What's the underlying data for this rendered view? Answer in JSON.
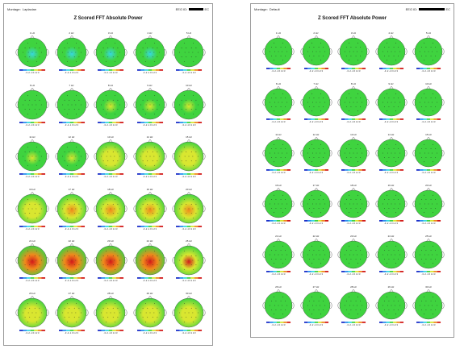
{
  "reports": [
    {
      "id": "left",
      "montage_label": "Montage",
      "montage_value": "Laplacian",
      "eeg_id_label": "EEG ID",
      "eeg_id_tail": "EC",
      "title": "Z Scored FFT Absolute Power",
      "hz_labels": [
        "1 Hz",
        "2 Hz",
        "3 Hz",
        "4 Hz",
        "5 Hz",
        "6 Hz",
        "7 Hz",
        "8 Hz",
        "9 Hz",
        "10 Hz",
        "11 Hz",
        "12 Hz",
        "13 Hz",
        "14 Hz",
        "15 Hz",
        "16 Hz",
        "17 Hz",
        "18 Hz",
        "19 Hz",
        "20 Hz",
        "21 Hz",
        "22 Hz",
        "23 Hz",
        "24 Hz",
        "25 Hz",
        "26 Hz",
        "27 Hz",
        "28 Hz",
        "29 Hz",
        "30 Hz"
      ],
      "scale_label": "-3 -2 -1 0 1 2 3",
      "map_intensity": [
        -0.6,
        -0.9,
        -0.8,
        -0.6,
        -0.5,
        -0.3,
        0.1,
        0.5,
        0.7,
        0.5,
        0.6,
        0.8,
        1.0,
        1.2,
        1.0,
        1.4,
        1.6,
        1.8,
        2.0,
        2.2,
        2.8,
        3.0,
        3.0,
        2.9,
        2.6,
        1.4,
        1.2,
        1.0,
        1.1,
        1.0
      ]
    },
    {
      "id": "right",
      "montage_label": "Montage",
      "montage_value": "Default",
      "eeg_id_label": "EEG ID",
      "eeg_id_tail": "EC",
      "title": "Z Scored FFT Absolute Power",
      "hz_labels": [
        "1 Hz",
        "2 Hz",
        "3 Hz",
        "4 Hz",
        "5 Hz",
        "6 Hz",
        "7 Hz",
        "8 Hz",
        "9 Hz",
        "10 Hz",
        "11 Hz",
        "12 Hz",
        "13 Hz",
        "14 Hz",
        "15 Hz",
        "16 Hz",
        "17 Hz",
        "18 Hz",
        "19 Hz",
        "20 Hz",
        "21 Hz",
        "22 Hz",
        "23 Hz",
        "24 Hz",
        "25 Hz",
        "26 Hz",
        "27 Hz",
        "28 Hz",
        "29 Hz",
        "30 Hz"
      ],
      "scale_label": "-3 -2 -1 0 1 2 3",
      "map_intensity": [
        0.0,
        0.1,
        0.2,
        0.3,
        0.3,
        0.1,
        0.0,
        -0.2,
        -0.3,
        -0.2,
        0.0,
        0.0,
        0.0,
        0.0,
        0.0,
        0.0,
        0.0,
        0.0,
        0.0,
        0.1,
        0.0,
        0.1,
        0.2,
        0.2,
        0.1,
        0.0,
        0.0,
        0.0,
        0.1,
        0.0
      ]
    }
  ],
  "colors": {
    "scale": [
      "#1c2fc8",
      "#2a8ff0",
      "#38d8e0",
      "#3fd33f",
      "#d9e630",
      "#f08a1c",
      "#d21a1a"
    ]
  }
}
